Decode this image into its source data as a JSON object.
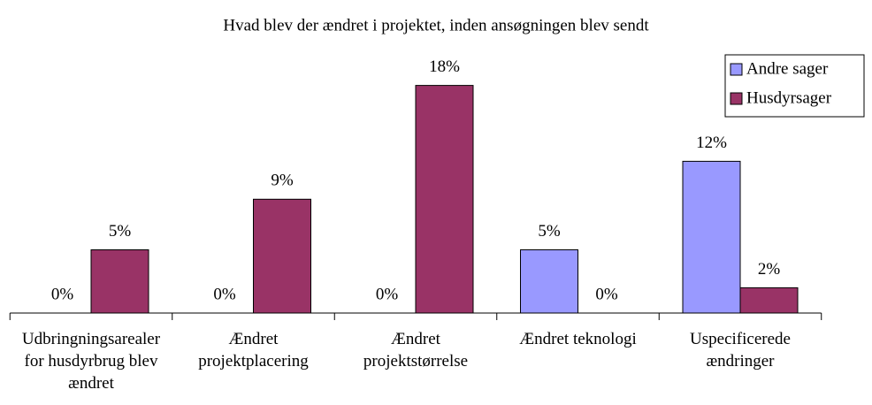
{
  "chart_data": {
    "type": "bar",
    "title": "Hvad blev der ændret i projektet, inden ansøgningen blev sendt",
    "categories": [
      "Udbringningsarealer for husdyrbrug blev ændret",
      "Ændret projektplacering",
      "Ændret projektstørrelse",
      "Ændret teknologi",
      "Uspecificerede ændringer"
    ],
    "series": [
      {
        "name": "Andre sager",
        "color": "#9999ff",
        "values": [
          0,
          0,
          0,
          5,
          12
        ],
        "value_labels": [
          "0%",
          "0%",
          "0%",
          "5%",
          "12%"
        ]
      },
      {
        "name": "Husdyrsager",
        "color": "#993366",
        "values": [
          5,
          9,
          18,
          0,
          2
        ],
        "value_labels": [
          "5%",
          "9%",
          "18%",
          "0%",
          "2%"
        ]
      }
    ],
    "legend": "top-right"
  }
}
